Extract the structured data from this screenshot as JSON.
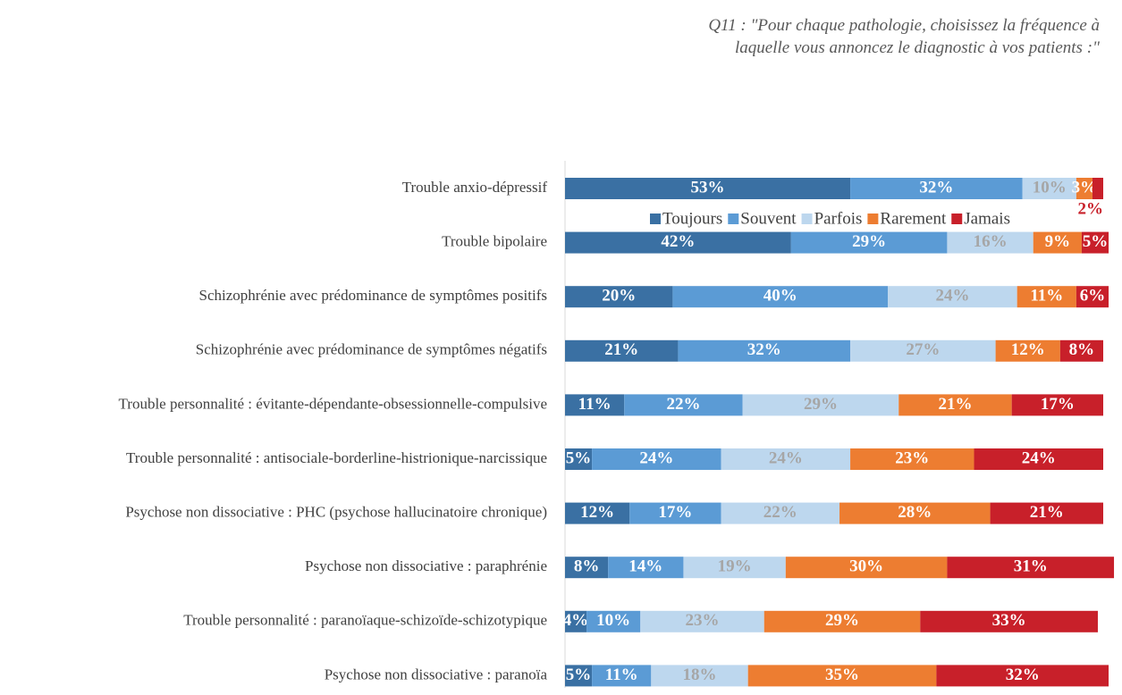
{
  "chart_data": {
    "type": "stacked-bar-horizontal",
    "title": "Q11 : \"Pour chaque pathologie, choisissez la fréquence à laquelle vous annoncez le diagnostic à vos patients :\"",
    "categories": [
      "Trouble anxio-dépressif",
      "Trouble bipolaire",
      "Schizophrénie avec prédominance de symptômes positifs",
      "Schizophrénie avec prédominance de symptômes négatifs",
      "Trouble personnalité : évitante-dépendante-obsessionnelle-compulsive",
      "Trouble personnalité : antisociale-borderline-histrionique-narcissique",
      "Psychose non dissociative : PHC (psychose hallucinatoire chronique)",
      "Psychose non dissociative : paraphrénie",
      "Trouble personnalité : paranoïaque-schizoïde-schizotypique",
      "Psychose non dissociative : paranoïa"
    ],
    "xlim": [
      0,
      100
    ],
    "legend": "top-right",
    "series": [
      {
        "name": "Toujours",
        "color": "#3a70a3",
        "values": [
          53,
          42,
          20,
          21,
          11,
          5,
          12,
          8,
          4,
          5
        ],
        "value_labels": [
          "53%",
          "42%",
          "20%",
          "21%",
          "11%",
          "5%",
          "12%",
          "8%",
          "4%",
          "5%"
        ]
      },
      {
        "name": "Souvent",
        "color": "#5b9bd5",
        "values": [
          32,
          29,
          40,
          32,
          22,
          24,
          17,
          14,
          10,
          11
        ],
        "value_labels": [
          "32%",
          "29%",
          "40%",
          "32%",
          "22%",
          "24%",
          "17%",
          "14%",
          "10%",
          "11%"
        ]
      },
      {
        "name": "Parfois",
        "color": "#bdd7ee",
        "values": [
          10,
          16,
          24,
          27,
          29,
          24,
          22,
          19,
          23,
          18
        ],
        "value_labels": [
          "10%",
          "16%",
          "24%",
          "27%",
          "29%",
          "24%",
          "22%",
          "19%",
          "23%",
          "18%"
        ]
      },
      {
        "name": "Rarement",
        "color": "#ed7d31",
        "values": [
          3,
          9,
          11,
          12,
          21,
          23,
          28,
          30,
          29,
          35
        ],
        "value_labels": [
          "3%",
          "9%",
          "11%",
          "12%",
          "21%",
          "23%",
          "28%",
          "30%",
          "29%",
          "35%"
        ]
      },
      {
        "name": "Jamais",
        "color": "#c8202a",
        "values": [
          2,
          5,
          6,
          8,
          17,
          24,
          21,
          31,
          33,
          32
        ],
        "value_labels": [
          "2%",
          "5%",
          "6%",
          "8%",
          "17%",
          "24%",
          "21%",
          "31%",
          "33%",
          "32%"
        ]
      }
    ]
  }
}
